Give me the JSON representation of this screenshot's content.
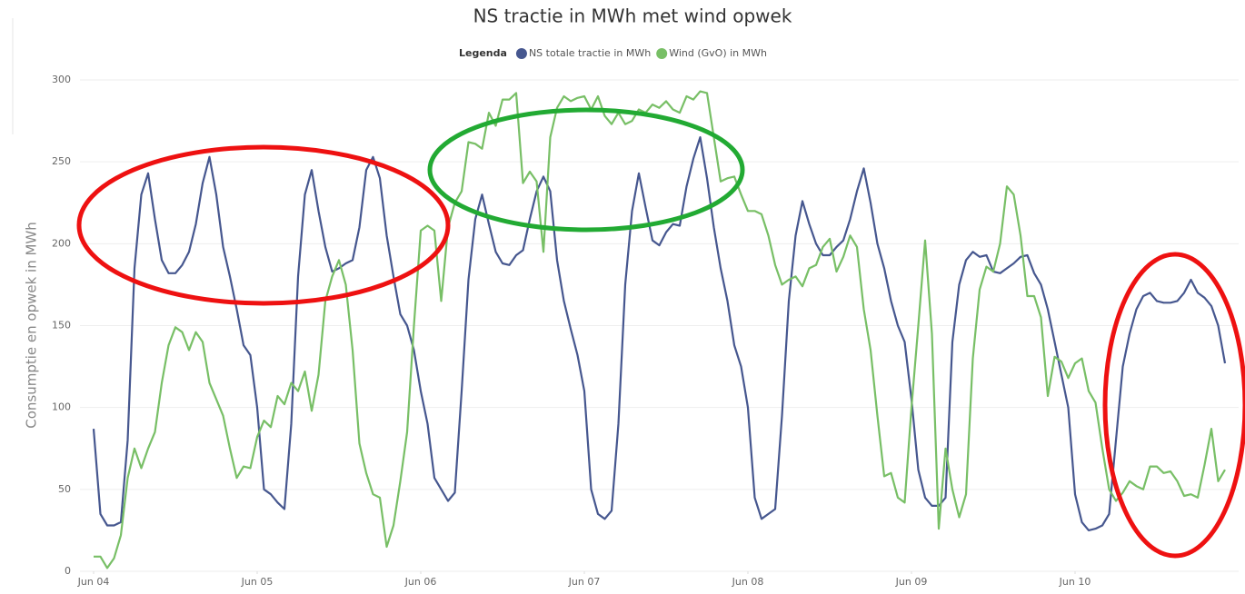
{
  "chart_data": {
    "type": "line",
    "title": "NS tractie in MWh met wind opwek",
    "legend_title": "Legenda",
    "legend_position": "top",
    "y_label": "Consumptie en opwek in MWh",
    "grid": true,
    "x": [
      0,
      1,
      2,
      3,
      4,
      5,
      6,
      7,
      8,
      9,
      10,
      11,
      12,
      13,
      14,
      15,
      16,
      17,
      18,
      19,
      20,
      21,
      22,
      23,
      24,
      25,
      26,
      27,
      28,
      29,
      30,
      31,
      32,
      33,
      34,
      35,
      36,
      37,
      38,
      39,
      40,
      41,
      42,
      43,
      44,
      45,
      46,
      47,
      48,
      49,
      50,
      51,
      52,
      53,
      54,
      55,
      56,
      57,
      58,
      59,
      60,
      61,
      62,
      63,
      64,
      65,
      66,
      67,
      68,
      69,
      70,
      71,
      72,
      73,
      74,
      75,
      76,
      77,
      78,
      79,
      80,
      81,
      82,
      83,
      84,
      85,
      86,
      87,
      88,
      89,
      90,
      91,
      92,
      93,
      94,
      95,
      96,
      97,
      98,
      99,
      100,
      101,
      102,
      103,
      104,
      105,
      106,
      107,
      108,
      109,
      110,
      111,
      112,
      113,
      114,
      115,
      116,
      117,
      118,
      119,
      120,
      121,
      122,
      123,
      124,
      125,
      126,
      127,
      128,
      129,
      130,
      131,
      132,
      133,
      134,
      135,
      136,
      137,
      138,
      139,
      140,
      141,
      142,
      143,
      144,
      145,
      146,
      147,
      148,
      149,
      150,
      151,
      152,
      153,
      154,
      155,
      156,
      157,
      158,
      159,
      160,
      161,
      162,
      163,
      164,
      165,
      166
    ],
    "xlim": [
      -2,
      168
    ],
    "xticks": [
      {
        "value": 0,
        "label": "Jun 04"
      },
      {
        "value": 24,
        "label": "Jun 05"
      },
      {
        "value": 48,
        "label": "Jun 06"
      },
      {
        "value": 72,
        "label": "Jun 07"
      },
      {
        "value": 96,
        "label": "Jun 08"
      },
      {
        "value": 120,
        "label": "Jun 09"
      },
      {
        "value": 144,
        "label": "Jun 10"
      }
    ],
    "ylim": [
      0,
      300
    ],
    "yticks": [
      0,
      50,
      100,
      150,
      200,
      250,
      300
    ],
    "series": [
      {
        "name": "NS totale tractie in MWh",
        "color": "#46578f",
        "values": [
          87,
          35,
          28,
          28,
          30,
          80,
          185,
          230,
          243,
          215,
          190,
          182,
          182,
          187,
          195,
          212,
          237,
          253,
          230,
          198,
          180,
          160,
          138,
          132,
          100,
          50,
          47,
          42,
          38,
          90,
          180,
          230,
          245,
          220,
          198,
          183,
          185,
          188,
          190,
          210,
          245,
          253,
          240,
          205,
          180,
          157,
          150,
          135,
          110,
          90,
          57,
          50,
          43,
          48,
          110,
          178,
          215,
          230,
          212,
          195,
          188,
          187,
          193,
          196,
          215,
          232,
          241,
          232,
          190,
          165,
          148,
          132,
          110,
          50,
          35,
          32,
          37,
          90,
          175,
          220,
          243,
          222,
          202,
          199,
          207,
          212,
          211,
          235,
          252,
          265,
          240,
          210,
          185,
          165,
          138,
          125,
          100,
          45,
          32,
          35,
          38,
          95,
          165,
          205,
          226,
          212,
          200,
          193,
          193,
          198,
          202,
          215,
          232,
          246,
          225,
          200,
          185,
          165,
          150,
          140,
          105,
          62,
          45,
          40,
          40,
          45,
          140,
          175,
          190,
          195,
          192,
          193,
          183,
          182,
          185,
          188,
          192,
          193,
          182,
          175,
          160,
          140,
          120,
          100,
          47,
          30,
          25,
          26,
          28,
          35,
          80,
          125,
          145,
          160,
          168,
          170,
          165,
          164,
          164,
          165,
          170,
          178,
          170,
          167,
          162,
          150,
          127
        ]
      },
      {
        "name": "Wind (GvO) in MWh",
        "color": "#78bf66",
        "values": [
          9,
          9,
          2,
          8,
          22,
          57,
          75,
          63,
          75,
          85,
          115,
          138,
          149,
          146,
          135,
          146,
          140,
          115,
          105,
          95,
          75,
          57,
          64,
          63,
          82,
          92,
          88,
          107,
          102,
          115,
          110,
          122,
          98,
          120,
          165,
          180,
          190,
          175,
          135,
          78,
          60,
          47,
          45,
          15,
          28,
          55,
          85,
          150,
          208,
          211,
          208,
          165,
          210,
          225,
          232,
          262,
          261,
          258,
          280,
          272,
          288,
          288,
          292,
          237,
          244,
          238,
          195,
          265,
          283,
          290,
          287,
          289,
          290,
          282,
          290,
          278,
          273,
          280,
          273,
          275,
          282,
          280,
          285,
          283,
          287,
          282,
          280,
          290,
          288,
          293,
          292,
          265,
          238,
          240,
          241,
          230,
          220,
          220,
          218,
          205,
          187,
          175,
          178,
          180,
          174,
          185,
          187,
          198,
          203,
          183,
          192,
          205,
          198,
          160,
          135,
          95,
          58,
          60,
          45,
          42,
          100,
          150,
          202,
          145,
          26,
          75,
          50,
          33,
          47,
          130,
          172,
          186,
          183,
          200,
          235,
          230,
          205,
          168,
          168,
          155,
          107,
          131,
          128,
          118,
          127,
          130,
          110,
          103,
          75,
          50,
          43,
          48,
          55,
          52,
          50,
          64,
          64,
          60,
          61,
          55,
          46,
          47,
          45,
          65,
          87,
          55,
          62
        ]
      }
    ]
  }
}
